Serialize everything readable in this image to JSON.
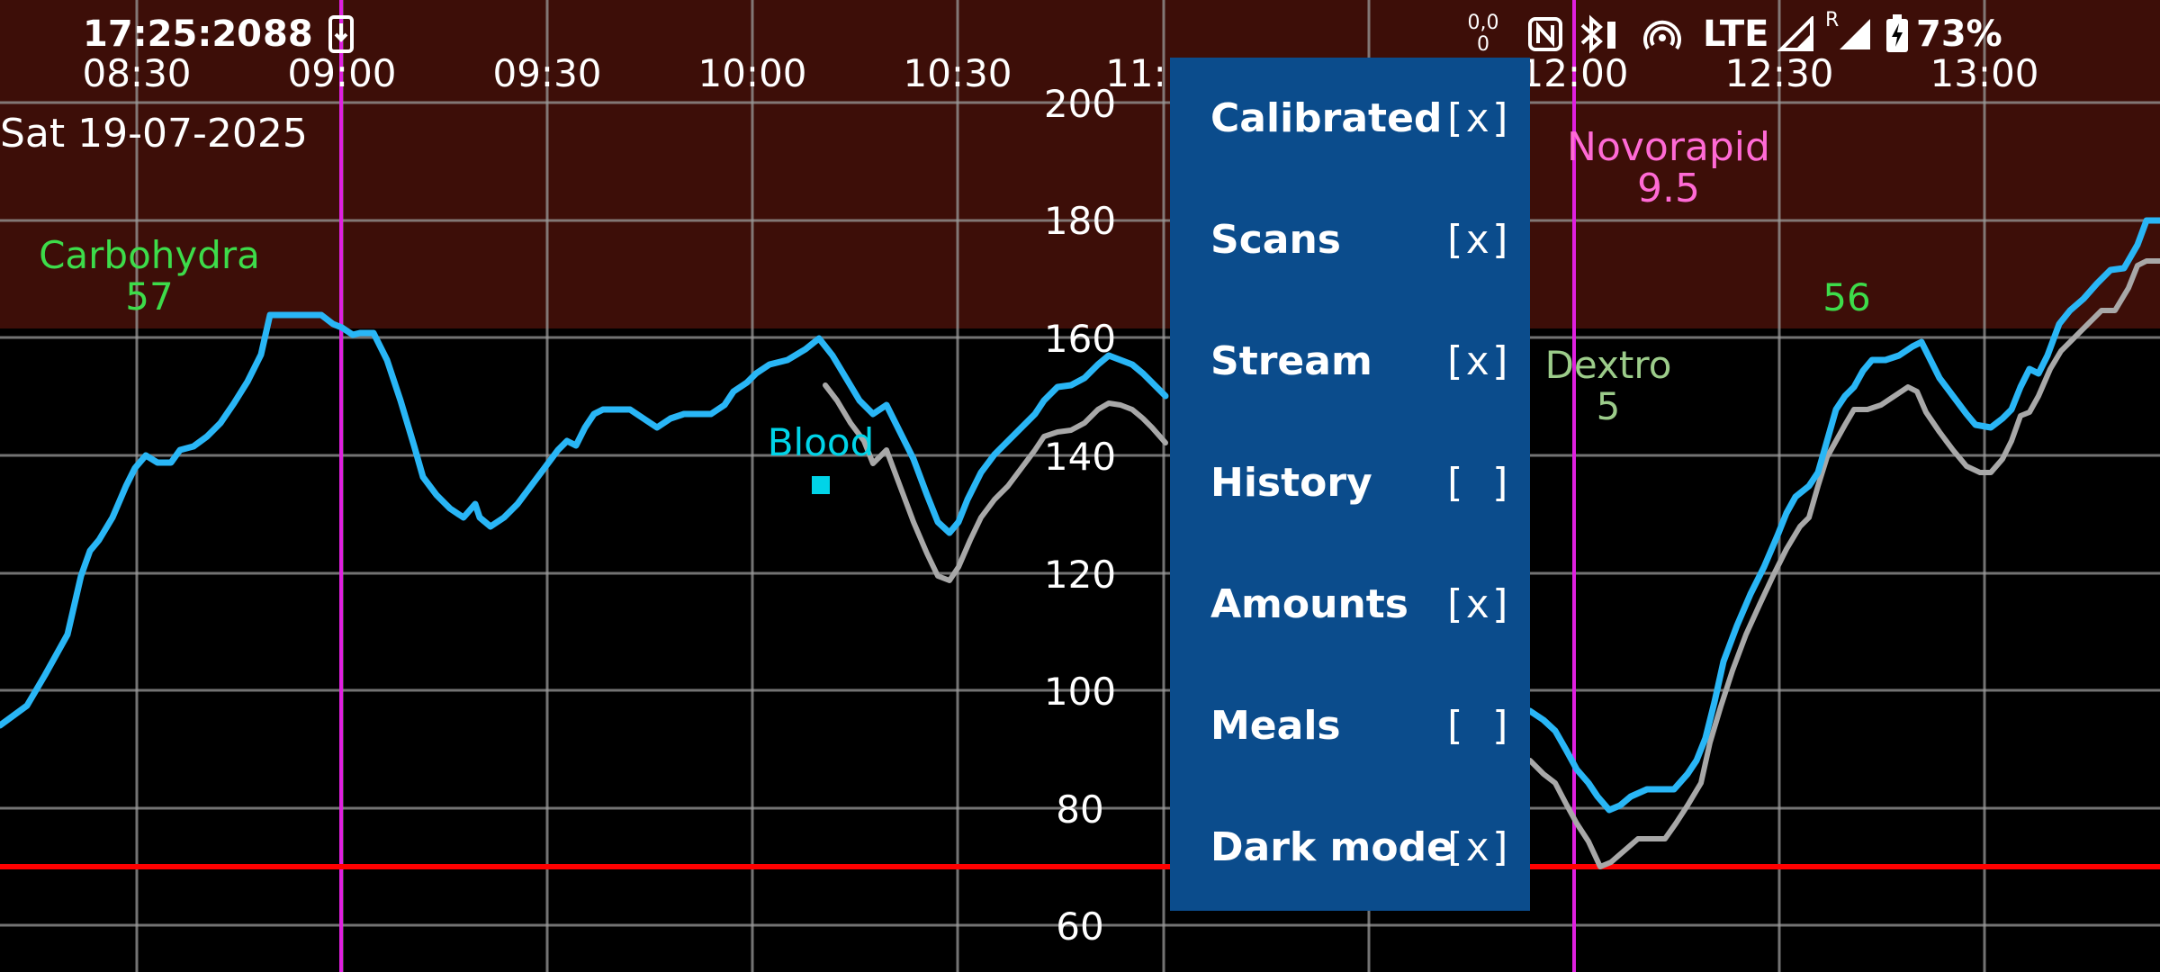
{
  "status_bar": {
    "time": "17:25:20",
    "app_icon_text": "88",
    "network_speed": "0,0\n0",
    "network_type": "LTE",
    "roaming": "R",
    "battery": "73%",
    "icons": [
      "download-icon",
      "nfc-icon",
      "bluetooth-battery-icon",
      "hotspot-icon",
      "signal-icon",
      "signal-roaming-icon",
      "battery-charging-icon"
    ]
  },
  "graph": {
    "date": "Sat 19-07-2025",
    "time_labels": [
      "08:30",
      "09:00",
      "09:30",
      "10:00",
      "10:30",
      "11:",
      "12:00",
      "12:30",
      "13:00"
    ],
    "y_labels": [
      "200",
      "180",
      "160",
      "140",
      "120",
      "100",
      "80",
      "60"
    ],
    "colors": {
      "high_zone": "#3d0e08",
      "normal_zone": "#000000",
      "grid": "#9a9a9a",
      "stream_line": "#29b6f6",
      "calibrated_line": "#a8a8a8",
      "insulin_marker": "#e020e0",
      "low_line": "#ff0000",
      "carbs_label": "#3ddc4a",
      "insulin_label": "#ff6ad5",
      "blood_label": "#00d4e8",
      "dextro_label": "#9ccc8a"
    },
    "annotations": {
      "carbs_label": "Carbohydra",
      "carbs_value": "57",
      "carbs2_value": "56",
      "insulin_label": "Novorapid",
      "insulin_value": "9.5",
      "blood_label": "Blood",
      "dextro_label": "Dextro",
      "dextro_value": "5"
    }
  },
  "menu": {
    "items": [
      {
        "label": "Calibrated",
        "check": "[x]"
      },
      {
        "label": "Scans",
        "check": "[x]"
      },
      {
        "label": "Stream",
        "check": "[x]"
      },
      {
        "label": "History",
        "check": "[ ]"
      },
      {
        "label": "Amounts",
        "check": "[x]"
      },
      {
        "label": "Meals",
        "check": "[ ]"
      },
      {
        "label": "Dark mode",
        "check": "[x]"
      }
    ]
  }
}
